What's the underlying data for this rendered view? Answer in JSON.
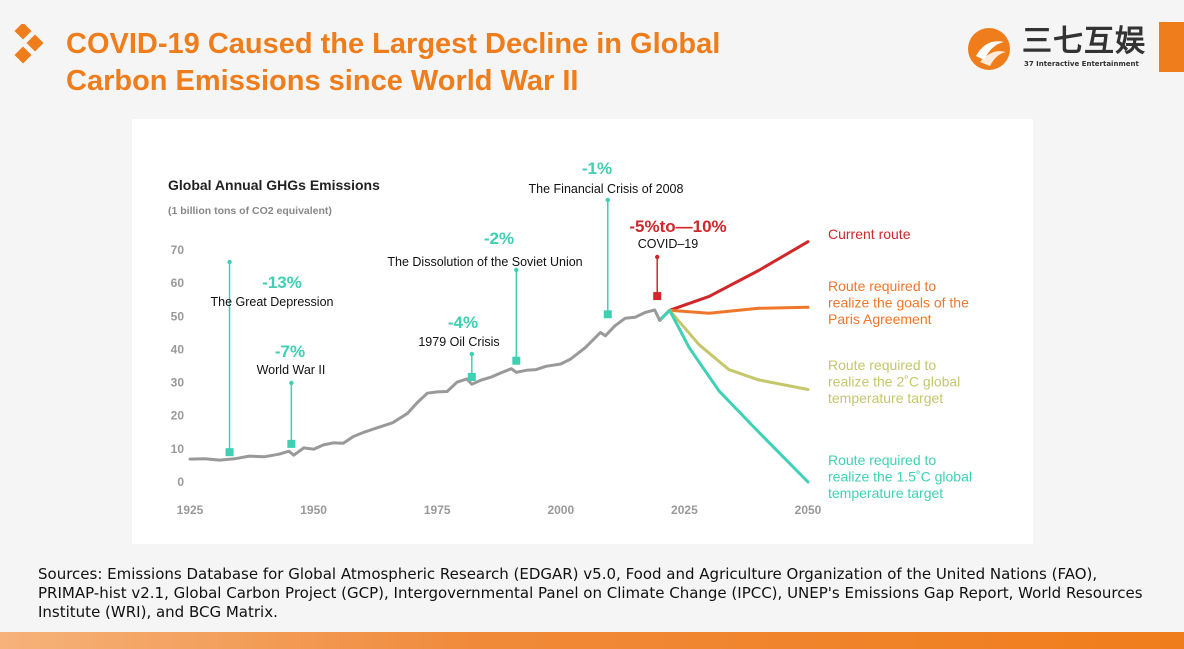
{
  "slide": {
    "title_line1": "COVID-19 Caused the Largest Decline in Global",
    "title_line2": "Carbon Emissions since World War II",
    "accent_color": "#f07d1b"
  },
  "logo": {
    "name_cn": "三七互娱",
    "name_en": "37 Interactive Entertainment"
  },
  "sources": "Sources: Emissions Database for Global Atmospheric Research (EDGAR) v5.0, Food and Agriculture Organization of the United Nations (FAO), PRIMAP-hist v2.1, Global Carbon Project (GCP), Intergovernmental Panel on Climate Change (IPCC), UNEP's Emissions Gap Report, World Resources Institute (WRI), and BCG Matrix.",
  "chart_data": {
    "type": "line",
    "title": "Global Annual GHGs Emissions",
    "subtitle": "(1 billion tons of CO2 equivalent)",
    "xlabel": "",
    "ylabel": "",
    "xlim": [
      1925,
      2050
    ],
    "ylim": [
      0,
      70
    ],
    "x_ticks": [
      1925,
      1950,
      1975,
      2000,
      2025,
      2050
    ],
    "y_ticks": [
      0,
      10,
      20,
      30,
      40,
      50,
      60,
      70
    ],
    "grid": false,
    "historical": {
      "color": "#999999",
      "x": [
        1925,
        1928,
        1931,
        1934,
        1937,
        1940,
        1943,
        1945,
        1946,
        1948,
        1950,
        1952,
        1954,
        1956,
        1958,
        1960,
        1963,
        1966,
        1969,
        1971,
        1973,
        1975,
        1977,
        1979,
        1981,
        1982,
        1984,
        1986,
        1988,
        1990,
        1991,
        1993,
        1995,
        1997,
        2000,
        2002,
        2005,
        2008,
        2009,
        2011,
        2013,
        2015,
        2017,
        2019,
        2020
      ],
      "y": [
        6.9,
        7,
        6.6,
        7,
        7.8,
        7.6,
        8.4,
        9.3,
        8.1,
        10.3,
        9.9,
        11.2,
        11.8,
        11.7,
        13.7,
        14.9,
        16.4,
        17.9,
        20.7,
        24,
        26.8,
        27.2,
        27.3,
        30.1,
        31.1,
        29.5,
        30.8,
        31.7,
        33,
        34.2,
        33.1,
        33.7,
        33.9,
        34.9,
        35.6,
        37.1,
        40.6,
        45.1,
        44.1,
        47.2,
        49.4,
        49.7,
        51.1,
        51.9,
        48.8
      ]
    },
    "series": [
      {
        "name": "Current route",
        "color": "#d0272b",
        "x": [
          2020,
          2022,
          2030,
          2040,
          2050
        ],
        "y": [
          48.8,
          51.8,
          56,
          63.8,
          72.5
        ]
      },
      {
        "name": "Route required to realize the goals of the Paris Agreement",
        "color": "#f0762a",
        "x": [
          2020,
          2022,
          2030,
          2040,
          2050
        ],
        "y": [
          48.8,
          51.8,
          50.9,
          52.4,
          52.7
        ]
      },
      {
        "name": "Route required to realize the 2˚C global temperature target",
        "color": "#c4c76a",
        "x": [
          2020,
          2022,
          2028,
          2034,
          2040,
          2050
        ],
        "y": [
          48.8,
          51.8,
          41.4,
          33.9,
          30.8,
          27.9
        ]
      },
      {
        "name": "Route required to realize the 1.5˚C global temperature target",
        "color": "#3fd1b5",
        "x": [
          2020,
          2022,
          2026,
          2032,
          2040,
          2050
        ],
        "y": [
          48.8,
          51.8,
          40.5,
          27.5,
          15.1,
          0
        ]
      }
    ],
    "annotations": [
      {
        "pct": "-13%",
        "label": "The Great Depression",
        "x": 1933,
        "y": 9,
        "color": "#3fcfb2",
        "pct_color": "#3fcfb2"
      },
      {
        "pct": "-7%",
        "label": "World War II",
        "x": 1945.5,
        "y": 11.5,
        "color": "#3fcfb2",
        "pct_color": "#3fcfb2"
      },
      {
        "pct": "-4%",
        "label": "1979 Oil Crisis",
        "x": 1982,
        "y": 31.7,
        "color": "#3fcfb2",
        "pct_color": "#3fcfb2"
      },
      {
        "pct": "-2%",
        "label": "The Dissolution of the Soviet Union",
        "x": 1991,
        "y": 36.6,
        "color": "#3fcfb2",
        "pct_color": "#3fcfb2"
      },
      {
        "pct": "-1%",
        "label": "The Financial Crisis of 2008",
        "x": 2009.5,
        "y": 50.6,
        "color": "#3fcfb2",
        "pct_color": "#3fcfb2"
      },
      {
        "pct": "-5%to—10%",
        "label": "COVID–19",
        "x": 2019.5,
        "y": 56.1,
        "color": "#d0272b",
        "pct_color": "#d0272b"
      }
    ]
  }
}
